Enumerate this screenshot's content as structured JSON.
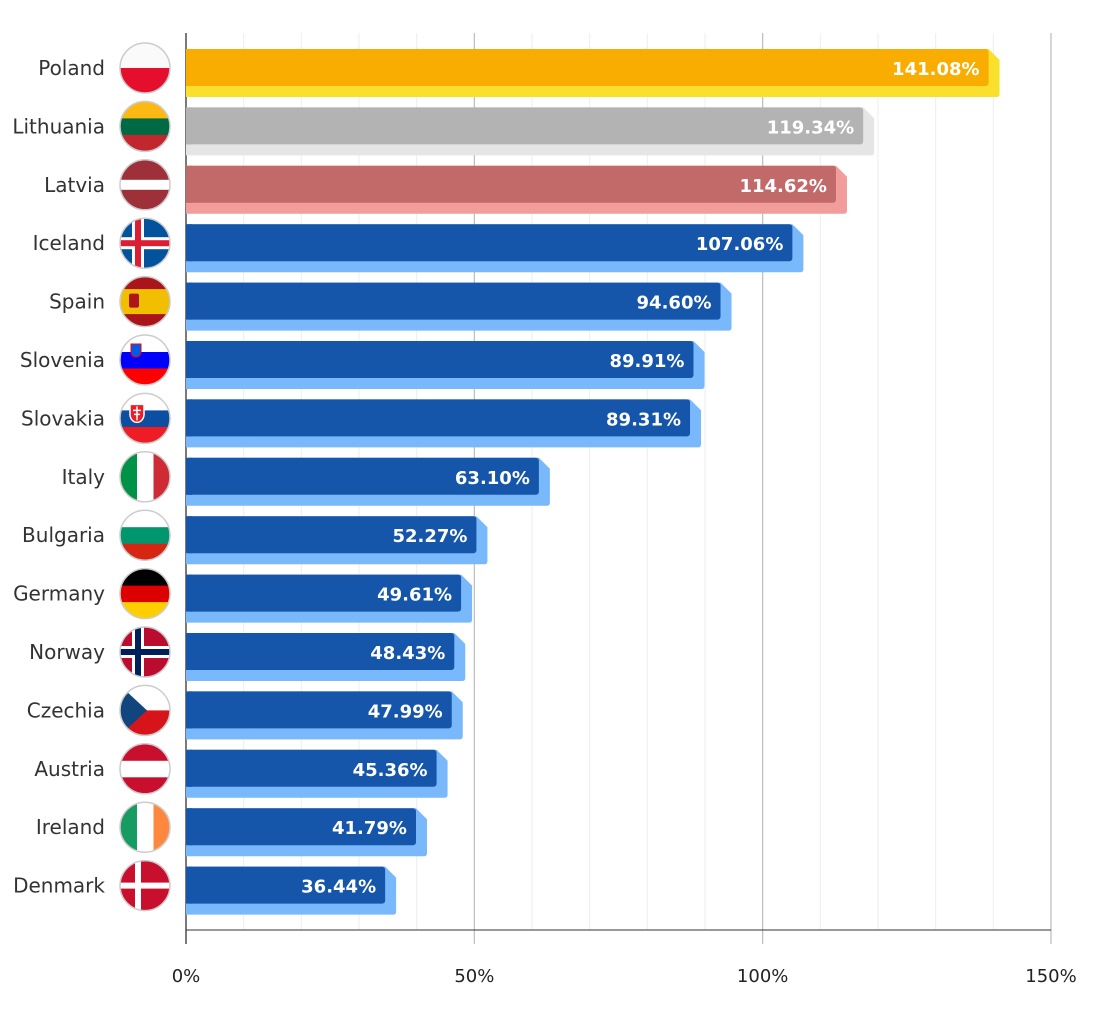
{
  "chart_data": {
    "type": "bar",
    "orientation": "horizontal",
    "title": "",
    "xlabel": "",
    "ylabel": "",
    "xlim": [
      0,
      150
    ],
    "x_ticks": [
      "0%",
      "50%",
      "100%",
      "150%"
    ],
    "grid": true,
    "categories": [
      "Poland",
      "Lithuania",
      "Latvia",
      "Iceland",
      "Spain",
      "Slovenia",
      "Slovakia",
      "Italy",
      "Bulgaria",
      "Germany",
      "Norway",
      "Czechia",
      "Austria",
      "Ireland",
      "Denmark"
    ],
    "values": [
      141.08,
      119.34,
      114.62,
      107.06,
      94.6,
      89.91,
      89.31,
      63.1,
      52.27,
      49.61,
      48.43,
      47.99,
      45.36,
      41.79,
      36.44
    ],
    "value_labels": [
      "141.08%",
      "119.34%",
      "114.62%",
      "107.06%",
      "94.60%",
      "89.91%",
      "89.31%",
      "63.10%",
      "52.27%",
      "49.61%",
      "48.43%",
      "47.99%",
      "45.36%",
      "41.79%",
      "36.44%"
    ],
    "bar_colors": [
      {
        "front": "#f9ad00",
        "shadow": "#fae02c"
      },
      {
        "front": "#b3b3b3",
        "shadow": "#e5e5e5"
      },
      {
        "front": "#c26a6a",
        "shadow": "#f39c9c"
      },
      {
        "front": "#1555aa",
        "shadow": "#78b8fb"
      }
    ],
    "flag_icons": [
      "poland-flag",
      "lithuania-flag",
      "latvia-flag",
      "iceland-flag",
      "spain-flag",
      "slovenia-flag",
      "slovakia-flag",
      "italy-flag",
      "bulgaria-flag",
      "germany-flag",
      "norway-flag",
      "czechia-flag",
      "austria-flag",
      "ireland-flag",
      "denmark-flag"
    ]
  }
}
